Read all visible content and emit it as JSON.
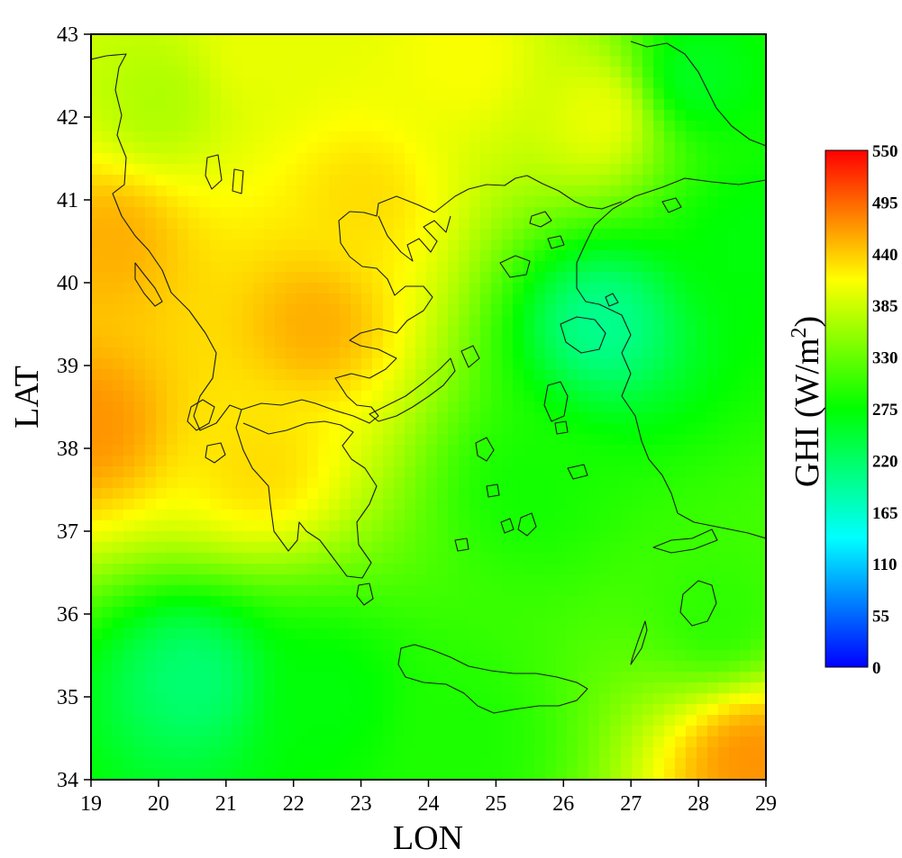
{
  "chart_data": {
    "type": "heatmap",
    "map": "contour map of Greece and the surrounding sea",
    "xlabel": "LON",
    "ylabel": "LAT",
    "xlim": [
      19,
      29
    ],
    "ylim": [
      34,
      43
    ],
    "x_ticks": [
      "19",
      "20",
      "21",
      "22",
      "23",
      "24",
      "25",
      "26",
      "27",
      "28",
      "29"
    ],
    "y_ticks": [
      "34",
      "35",
      "36",
      "37",
      "38",
      "39",
      "40",
      "41",
      "42",
      "43"
    ],
    "colorbar": {
      "label": "GHI (W/m",
      "label_superscript": "2",
      "label_suffix": ")",
      "range": [
        0,
        550
      ],
      "ticks": [
        "0",
        "55",
        "110",
        "165",
        "220",
        "275",
        "330",
        "385",
        "440",
        "495",
        "550"
      ],
      "colors": [
        "#0000ff",
        "#00ffff",
        "#00ff00",
        "#ffff00",
        "#ff0000"
      ]
    },
    "field_anchors": [
      {
        "lon": 19.0,
        "lat": 38.3,
        "ghi": 470
      },
      {
        "lon": 19.3,
        "lat": 40.5,
        "ghi": 455
      },
      {
        "lon": 20.0,
        "lat": 42.2,
        "ghi": 370
      },
      {
        "lon": 21.5,
        "lat": 42.8,
        "ghi": 400
      },
      {
        "lon": 22.3,
        "lat": 39.5,
        "ghi": 455
      },
      {
        "lon": 21.5,
        "lat": 37.8,
        "ghi": 430
      },
      {
        "lon": 23.0,
        "lat": 41.0,
        "ghi": 430
      },
      {
        "lon": 24.5,
        "lat": 42.7,
        "ghi": 410
      },
      {
        "lon": 26.5,
        "lat": 42.0,
        "ghi": 400
      },
      {
        "lon": 28.0,
        "lat": 42.5,
        "ghi": 260
      },
      {
        "lon": 26.6,
        "lat": 39.5,
        "ghi": 200
      },
      {
        "lon": 25.5,
        "lat": 37.5,
        "ghi": 285
      },
      {
        "lon": 20.5,
        "lat": 35.2,
        "ghi": 215
      },
      {
        "lon": 22.5,
        "lat": 35.0,
        "ghi": 270
      },
      {
        "lon": 24.5,
        "lat": 34.5,
        "ghi": 290
      },
      {
        "lon": 28.3,
        "lat": 36.0,
        "ghi": 300
      },
      {
        "lon": 28.8,
        "lat": 34.2,
        "ghi": 470
      },
      {
        "lon": 28.8,
        "lat": 40.5,
        "ghi": 270
      }
    ]
  }
}
